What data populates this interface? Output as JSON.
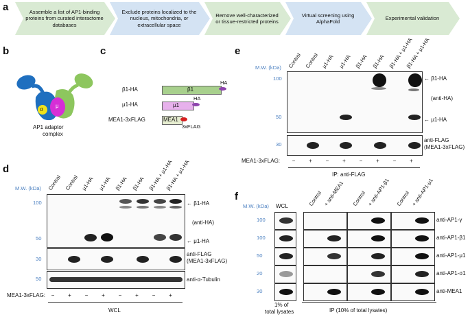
{
  "panel_a": {
    "label": "a",
    "steps": [
      "Assemble a list of AP1-binding proteins from curated interactome databases",
      "Exclude proteins localized to the nucleus, mitochondria, or extracellular space",
      "Remove well-characterized or tissue-restricted proteins",
      "Virtual screening using AlphaFold",
      "Experimental validation"
    ],
    "colors": {
      "green": "#d9ead3",
      "blue": "#d4e3f3"
    }
  },
  "panel_b": {
    "label": "b",
    "subunits": {
      "gamma": "γ",
      "beta": "β",
      "sigma": "σ",
      "mu": "μ"
    },
    "caption_line1": "AP1 adaptor",
    "caption_line2": "complex"
  },
  "panel_c": {
    "label": "c",
    "constructs": [
      {
        "name": "β1-HA",
        "domain": "β1",
        "tag": "HA"
      },
      {
        "name": "μ1-HA",
        "domain": "μ1",
        "tag": "HA"
      },
      {
        "name": "MEA1-3xFLAG",
        "domain": "MEA1",
        "tag": "3xFLAG"
      }
    ]
  },
  "panel_d": {
    "label": "d",
    "mw_header": "M.W. (kDa)",
    "lanes": [
      "Control",
      "Control",
      "μ1-HA",
      "μ1-HA",
      "β1-HA",
      "β1-HA",
      "β1-HA + μ1-HA",
      "β1-HA + μ1-HA"
    ],
    "mw_markers_top": [
      "100",
      "50"
    ],
    "mw_marker_mid": "30",
    "mw_marker_bot": "50",
    "right_labels": {
      "beta": "← β1-HA",
      "antiha": "(anti-HA)",
      "mu": "← μ1-HA",
      "flag1": "anti-FLAG",
      "flag2": "(MEA1-3xFLAG)",
      "tub": "anti-α-Tubulin"
    },
    "row_label": "MEA1-3xFLAG:",
    "signs": [
      "−",
      "+",
      "−",
      "+",
      "−",
      "+",
      "−",
      "+"
    ],
    "footer": "WCL"
  },
  "panel_e": {
    "label": "e",
    "mw_header": "M.W. (kDa)",
    "lanes": [
      "Control",
      "Control",
      "μ1-HA",
      "μ1-HA",
      "β1-HA",
      "β1-HA",
      "β1-HA + μ1-HA",
      "β1-HA + μ1-HA"
    ],
    "mw_markers": [
      "100",
      "50",
      "30"
    ],
    "right_labels": {
      "beta": "← β1-HA",
      "antiha": "(anti-HA)",
      "mu": "← μ1-HA",
      "flag1": "anti-FLAG",
      "flag2": "(MEA1-3xFLAG)"
    },
    "row_label": "MEA1-3xFLAG:",
    "signs": [
      "−",
      "+",
      "−",
      "+",
      "−",
      "+",
      "−",
      "+"
    ],
    "footer": "IP: anti-FLAG"
  },
  "panel_f": {
    "label": "f",
    "mw_header": "M.W. (kDa)",
    "wcl": "WCL",
    "lanes": [
      "Control",
      "+ anti-MEA1",
      "Control",
      "+ anti-AP1-β1",
      "Control",
      "+ anti-AP1-μ1"
    ],
    "mw_markers": [
      "100",
      "100",
      "50",
      "20",
      "30"
    ],
    "antibodies": [
      "anti-AP1-γ",
      "anti-AP1-β1",
      "anti-AP1-μ1",
      "anti-AP1-σ1",
      "anti-MEA1"
    ],
    "footer_left1": "1% of",
    "footer_left2": "total lysates",
    "footer_right": "IP (10% of total lysates)"
  }
}
